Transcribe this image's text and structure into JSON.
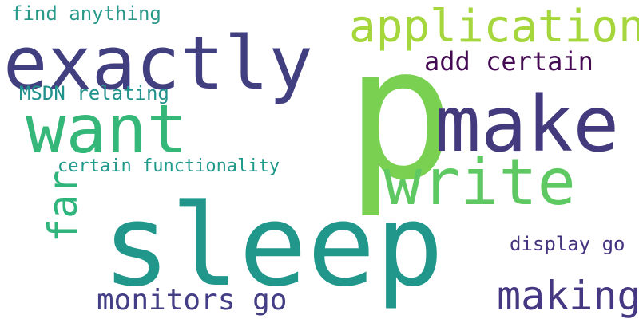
{
  "words": [
    {
      "text": "sleep",
      "color": "#21978b"
    },
    {
      "text": "p",
      "color": "#7ad151"
    },
    {
      "text": "exactly",
      "color": "#413f80"
    },
    {
      "text": "make",
      "color": "#433a7d"
    },
    {
      "text": "write",
      "color": "#5ec962"
    },
    {
      "text": "want",
      "color": "#35b779"
    },
    {
      "text": "application",
      "color": "#a5d63b"
    },
    {
      "text": "making",
      "color": "#453781"
    },
    {
      "text": "monitors go",
      "color": "#433e85"
    },
    {
      "text": "far",
      "color": "#2fb47c"
    },
    {
      "text": "add certain",
      "color": "#440a53"
    },
    {
      "text": "find anything",
      "color": "#2a998a"
    },
    {
      "text": "MSDN relating",
      "color": "#22928c"
    },
    {
      "text": "certain functionality",
      "color": "#1f9a8a"
    },
    {
      "text": "display go",
      "color": "#46337e"
    }
  ]
}
